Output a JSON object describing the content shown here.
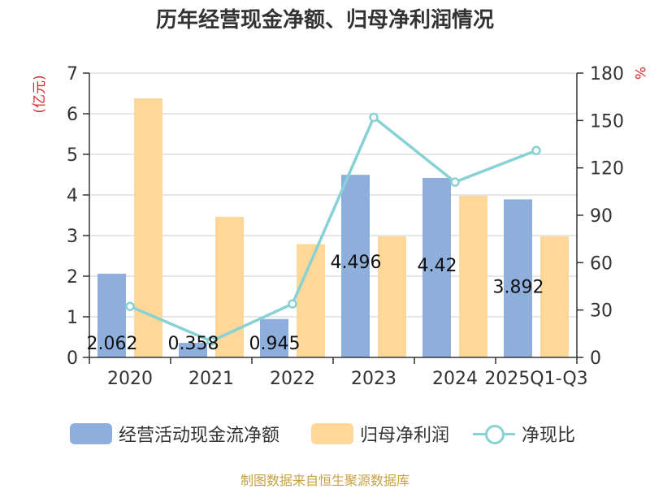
{
  "title": "历年经营现金净额、归母净利润情况",
  "source": "制图数据来自恒生聚源数据库",
  "colors": {
    "cash_flow": "#8eaedc",
    "net_profit": "#fdd898",
    "ratio": "#88d1d5",
    "axis_unit": "#d62b2b"
  },
  "chart_data": {
    "type": "bar",
    "categories": [
      "2020",
      "2021",
      "2022",
      "2023",
      "2024",
      "2025Q1-Q3"
    ],
    "left_axis": {
      "unit": "(亿元)",
      "min": 0,
      "max": 7,
      "ticks": [
        0,
        1,
        2,
        3,
        4,
        5,
        6,
        7
      ]
    },
    "right_axis": {
      "unit": "%",
      "min": 0,
      "max": 180,
      "ticks": [
        0,
        30,
        60,
        90,
        120,
        150,
        180
      ]
    },
    "grid": true,
    "legend_position": "bottom",
    "series": [
      {
        "name": "经营活动现金流净额",
        "type": "bar",
        "axis": "left",
        "values": [
          2.062,
          0.358,
          0.945,
          4.496,
          4.42,
          3.892
        ],
        "labels": [
          "2.062",
          "0.358",
          "0.945",
          "4.496",
          "4.42",
          "3.892"
        ]
      },
      {
        "name": "归母净利润",
        "type": "bar",
        "axis": "left",
        "values": [
          6.38,
          3.46,
          2.79,
          2.98,
          3.98,
          2.98
        ]
      },
      {
        "name": "净现比",
        "type": "line",
        "axis": "right",
        "values": [
          32.3,
          10.3,
          33.9,
          152,
          111,
          131
        ]
      }
    ]
  }
}
